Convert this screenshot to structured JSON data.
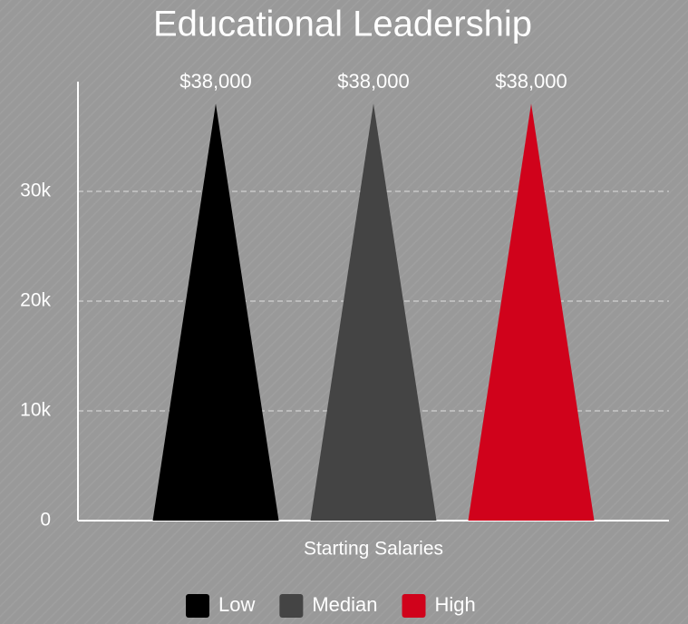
{
  "chart_data": {
    "type": "pyramid",
    "title": "Educational Leadership",
    "categories": [
      "Starting Salaries"
    ],
    "series": [
      {
        "name": "Low",
        "color": "#000000",
        "values": [
          38000
        ],
        "value_labels": [
          "$38,000"
        ]
      },
      {
        "name": "Median",
        "color": "#444444",
        "values": [
          38000
        ],
        "value_labels": [
          "$38,000"
        ]
      },
      {
        "name": "High",
        "color": "#d0021b",
        "values": [
          38000
        ],
        "value_labels": [
          "$38,000"
        ]
      }
    ],
    "ylim": [
      0,
      40000
    ],
    "yticks": [
      0,
      {
        "value": 10000,
        "label": "10k"
      },
      {
        "value": 20000,
        "label": "20k"
      },
      {
        "value": 30000,
        "label": "30k"
      }
    ],
    "grid": true,
    "legend": "bottom"
  }
}
